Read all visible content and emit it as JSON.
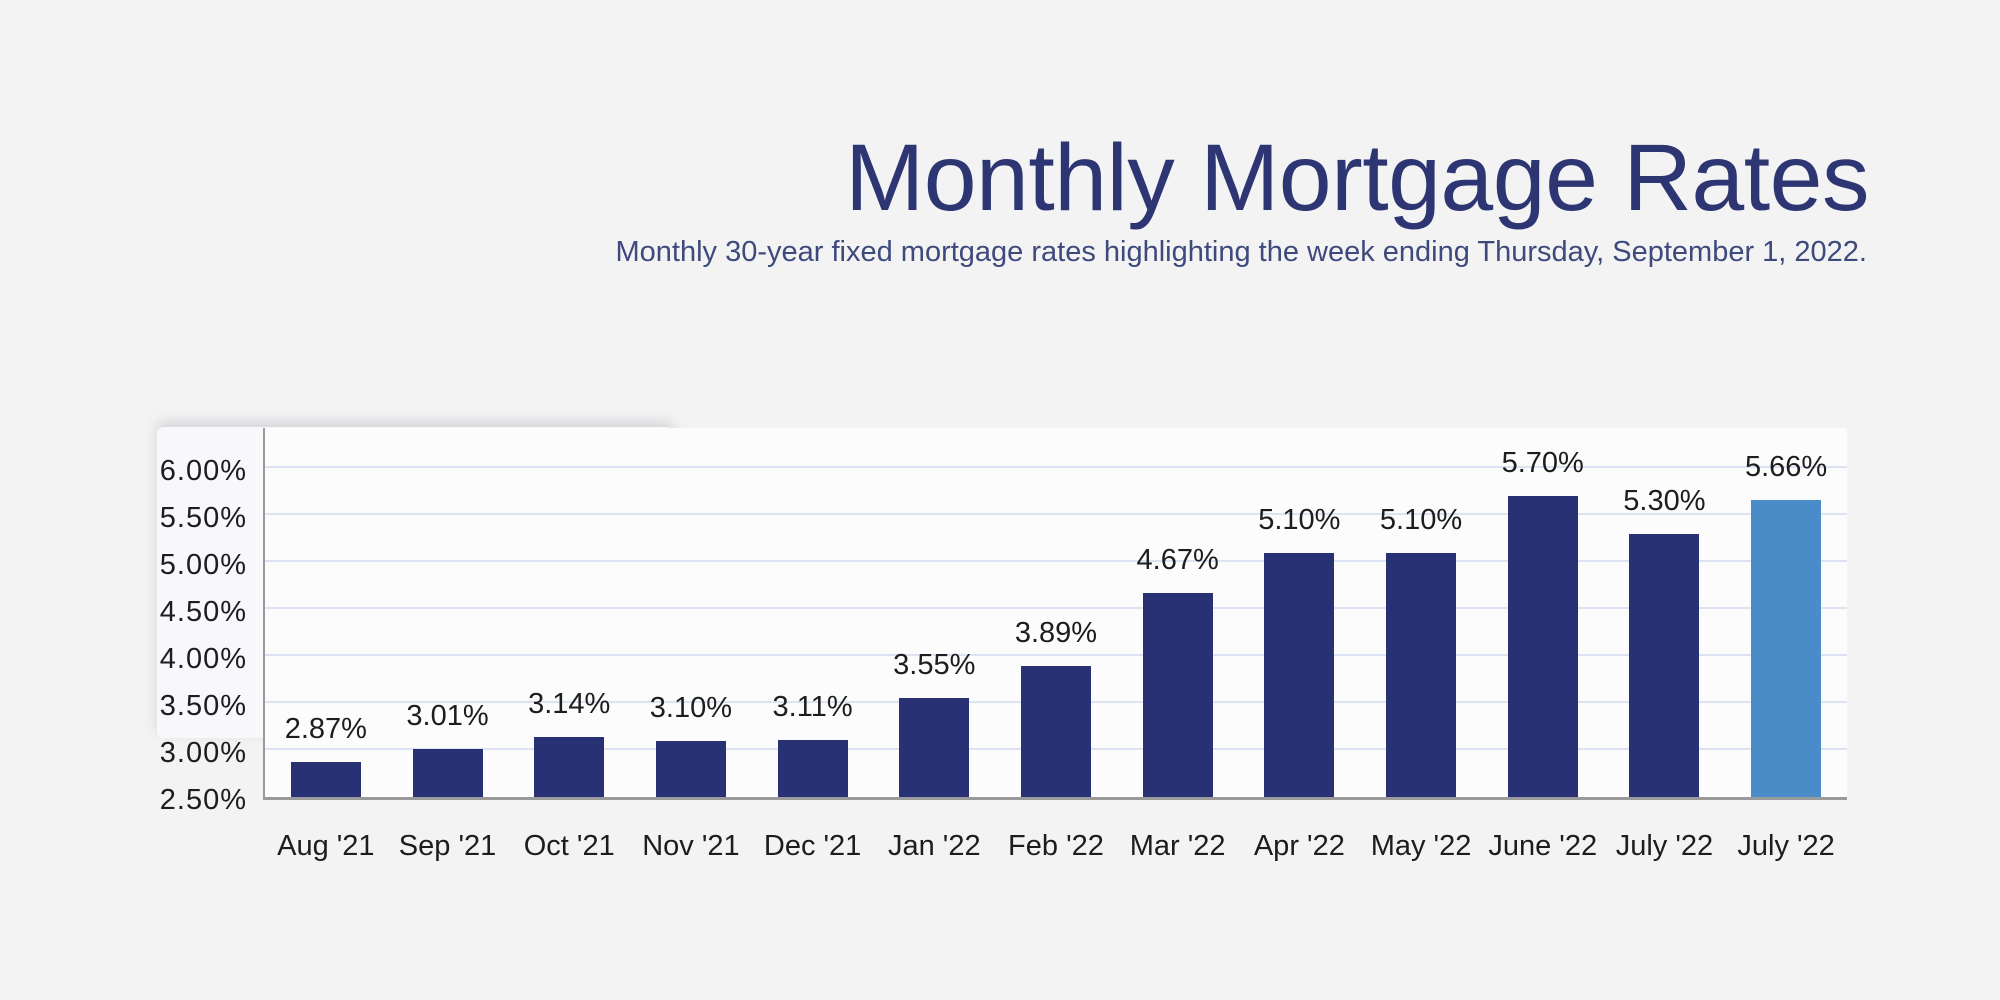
{
  "page": {
    "background_color": "#f3f3f4"
  },
  "header": {
    "title": "Monthly Mortgage Rates",
    "subtitle": "Monthly 30-year fixed mortgage rates highlighting the week ending Thursday, September 1, 2022.",
    "title_color": "#2d3673",
    "subtitle_color": "#3e4a7c"
  },
  "chart_data": {
    "type": "bar",
    "title": "Monthly Mortgage Rates",
    "subtitle": "Monthly 30-year fixed mortgage rates highlighting the week ending Thursday, September 1, 2022.",
    "categories": [
      "Aug '21",
      "Sep '21",
      "Oct '21",
      "Nov '21",
      "Dec '21",
      "Jan '22",
      "Feb '22",
      "Mar '22",
      "Apr '22",
      "May '22",
      "June '22",
      "July '22",
      "July '22"
    ],
    "values": [
      2.87,
      3.01,
      3.14,
      3.1,
      3.11,
      3.55,
      3.89,
      4.67,
      5.1,
      5.1,
      5.7,
      5.3,
      5.66
    ],
    "data_labels": [
      "2.87%",
      "3.01%",
      "3.14%",
      "3.10%",
      "3.11%",
      "3.55%",
      "3.89%",
      "4.67%",
      "5.10%",
      "5.10%",
      "5.70%",
      "5.30%",
      "5.66%"
    ],
    "highlighted_index": 12,
    "y_ticks": [
      "6.00%",
      "5.50%",
      "5.00%",
      "4.50%",
      "4.00%",
      "3.50%",
      "3.00%",
      "2.50%"
    ],
    "y_tick_values": [
      6.0,
      5.5,
      5.0,
      4.5,
      4.0,
      3.5,
      3.0,
      2.5
    ],
    "ylim": [
      2.5,
      6.0
    ],
    "grid": true,
    "legend": "none",
    "bar_color": "#283173",
    "highlight_color": "#4a8cc7",
    "grid_color": "#dce3f2",
    "axis_color": "#9a9a9c",
    "label_color": "#1d1d1f"
  }
}
